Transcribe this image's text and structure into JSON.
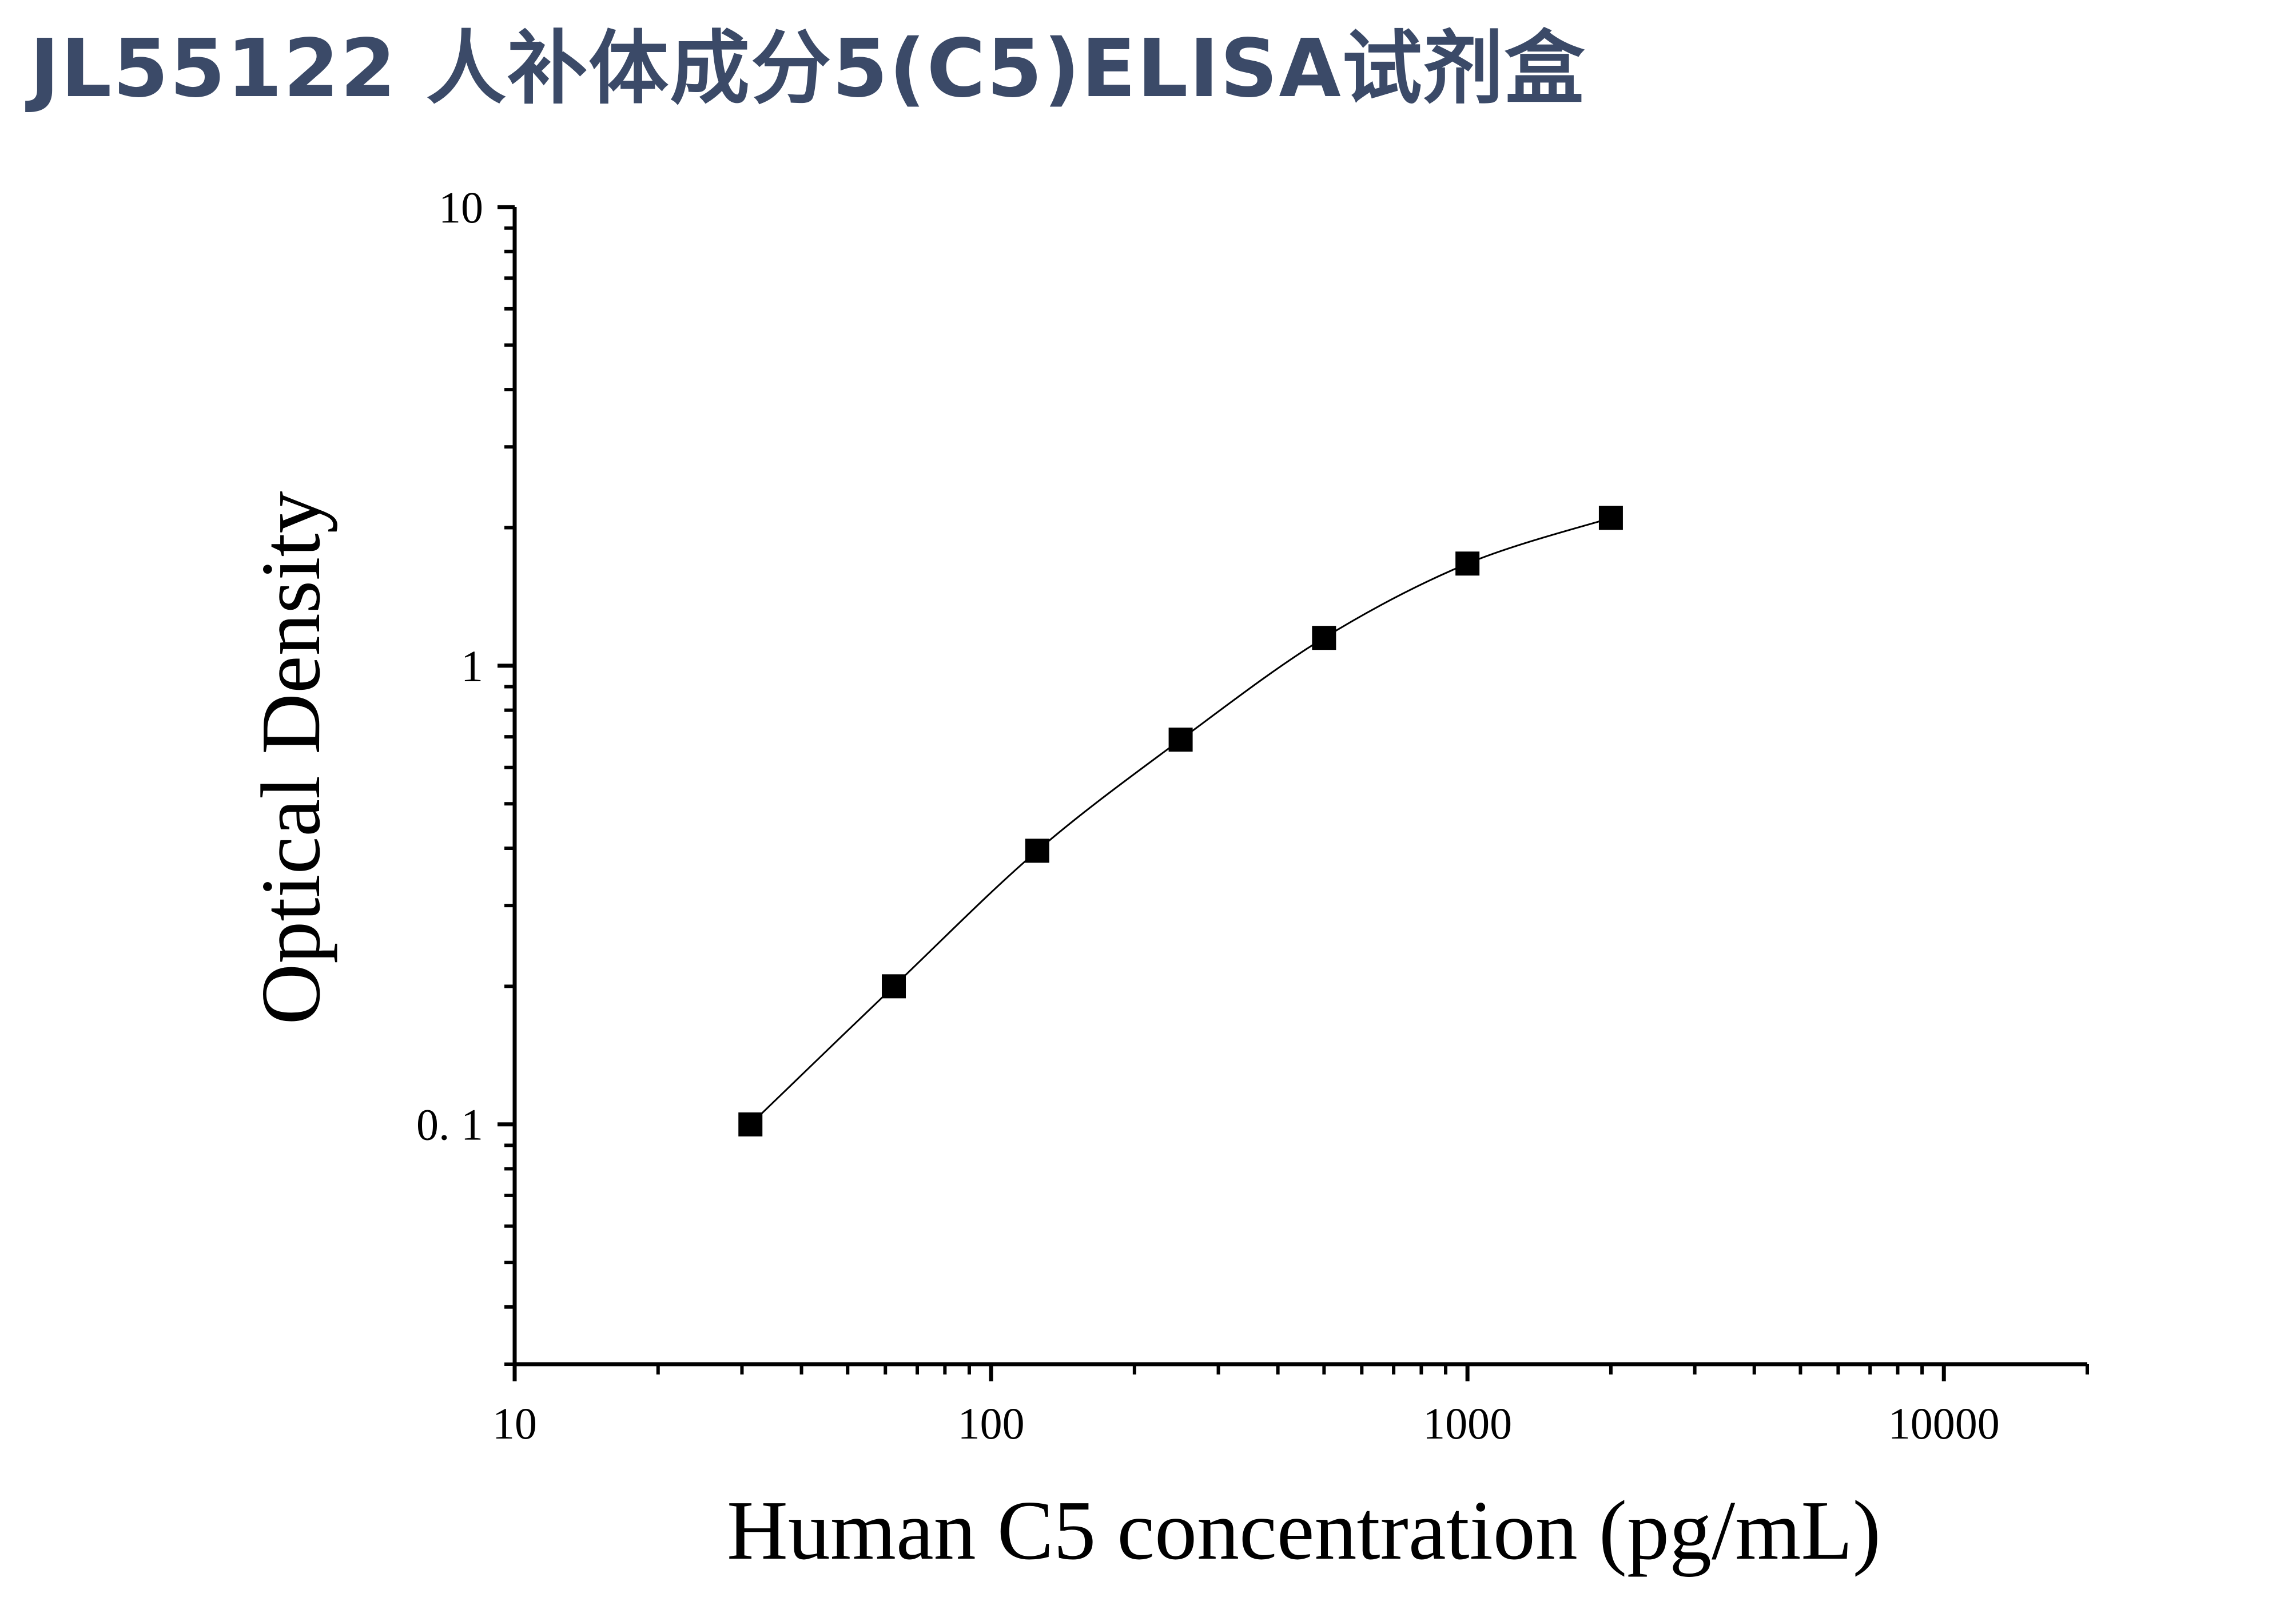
{
  "title": "JL55122 人补体成分5(C5)ELISA试剂盒",
  "colors": {
    "title": "#3b4a68",
    "marks": "#000000"
  },
  "chart_data": {
    "type": "scatter",
    "x_scale": "log",
    "y_scale": "log",
    "xlabel": "Human C5 concentration (pg/mL)",
    "ylabel": "Optical Density",
    "xlim": [
      10,
      20000
    ],
    "ylim": [
      0.03,
      10
    ],
    "x_ticks": [
      {
        "value": 10,
        "label": "10"
      },
      {
        "value": 100,
        "label": "100"
      },
      {
        "value": 1000,
        "label": "1000"
      },
      {
        "value": 10000,
        "label": "10000"
      }
    ],
    "y_ticks": [
      {
        "value": 0.1,
        "label": "0. 1"
      },
      {
        "value": 1,
        "label": "1"
      },
      {
        "value": 10,
        "label": "10"
      }
    ],
    "marker": "square",
    "fit_line": true,
    "series": [
      {
        "x": [
          31.25,
          62.5,
          125,
          250,
          500,
          1000,
          2000
        ],
        "y": [
          0.1,
          0.2,
          0.395,
          0.69,
          1.15,
          1.67,
          2.1
        ]
      }
    ]
  }
}
